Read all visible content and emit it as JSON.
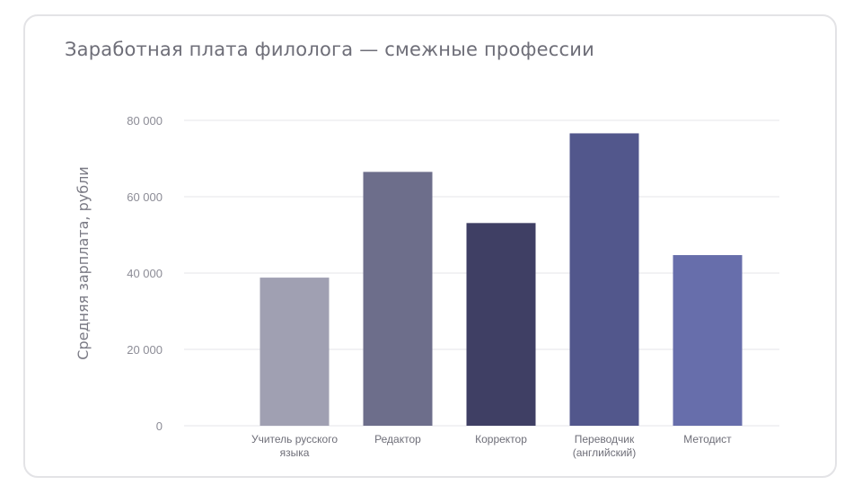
{
  "chart_data": {
    "type": "bar",
    "title": "Заработная плата филолога — смежные профессии",
    "xlabel": "",
    "ylabel": "Средняя зарплата, рубли",
    "ylim": [
      0,
      80000
    ],
    "yticks": [
      0,
      20000,
      40000,
      60000,
      80000
    ],
    "ytick_labels": [
      "0",
      "20 000",
      "40 000",
      "60 000",
      "80 000"
    ],
    "grid": true,
    "categories": [
      [
        "Учитель русского",
        "языка"
      ],
      [
        "Редактор"
      ],
      [
        "Корректор"
      ],
      [
        "Переводчик",
        "(английский)"
      ],
      [
        "Методист"
      ]
    ],
    "values": [
      38800,
      66500,
      53100,
      76600,
      44700
    ],
    "colors": [
      "#a0a0b2",
      "#6d6e8b",
      "#3f3f64",
      "#52578c",
      "#676eab"
    ]
  }
}
